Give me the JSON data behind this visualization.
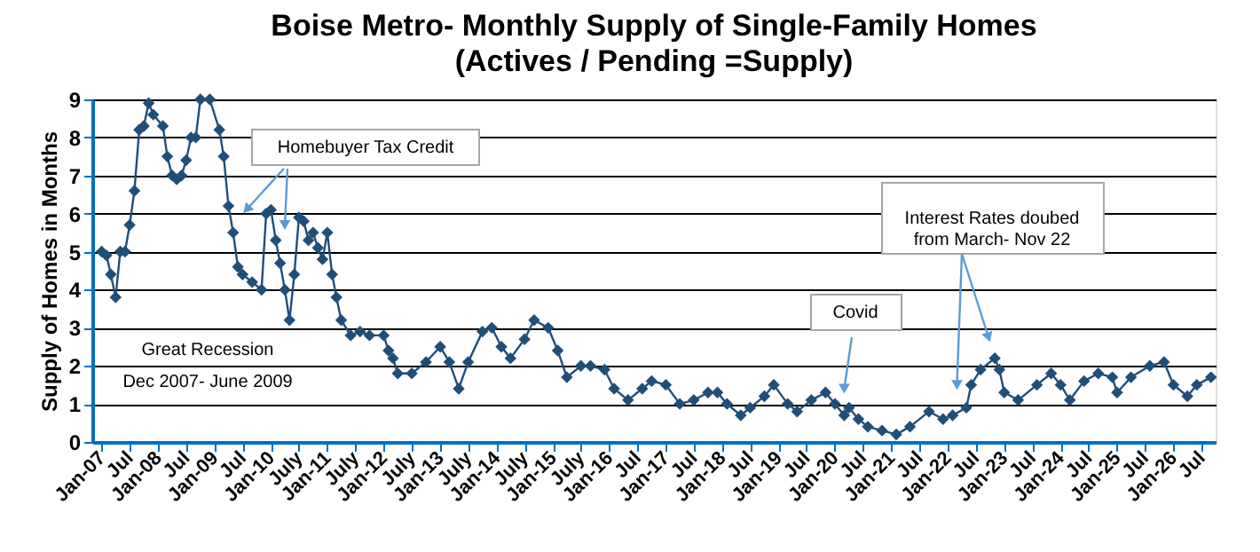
{
  "chart_data": {
    "type": "line",
    "title": "Boise Metro- Monthly Supply of Single-Family Homes\n(Actives / Pending =Supply)",
    "ylabel": "Supply of Homes in Months",
    "x": [
      "2007-01",
      "2007-02",
      "2007-03",
      "2007-04",
      "2007-05",
      "2007-06",
      "2007-07",
      "2007-08",
      "2007-09",
      "2007-10",
      "2007-11",
      "2007-12",
      "2008-02",
      "2008-03",
      "2008-04",
      "2008-05",
      "2008-06",
      "2008-07",
      "2008-08",
      "2008-09",
      "2008-10",
      "2008-12",
      "2009-02",
      "2009-03",
      "2009-04",
      "2009-05",
      "2009-06",
      "2009-07",
      "2009-09",
      "2009-11",
      "2009-12",
      "2010-01",
      "2010-02",
      "2010-03",
      "2010-04",
      "2010-05",
      "2010-06",
      "2010-07",
      "2010-08",
      "2010-09",
      "2010-10",
      "2010-11",
      "2010-12",
      "2011-01",
      "2011-02",
      "2011-03",
      "2011-04",
      "2011-06",
      "2011-08",
      "2011-10",
      "2012-01",
      "2012-02",
      "2012-03",
      "2012-04",
      "2012-07",
      "2012-10",
      "2013-01",
      "2013-03",
      "2013-05",
      "2013-07",
      "2013-10",
      "2013-12",
      "2014-02",
      "2014-04",
      "2014-07",
      "2014-09",
      "2014-12",
      "2015-02",
      "2015-04",
      "2015-07",
      "2015-09",
      "2015-12",
      "2016-02",
      "2016-05",
      "2016-08",
      "2016-10",
      "2017-01",
      "2017-04",
      "2017-07",
      "2017-10",
      "2017-12",
      "2018-02",
      "2018-05",
      "2018-07",
      "2018-10",
      "2018-12",
      "2019-03",
      "2019-05",
      "2019-08",
      "2019-11",
      "2020-01",
      "2020-03",
      "2020-04",
      "2020-06",
      "2020-08",
      "2020-11",
      "2021-02",
      "2021-05",
      "2021-09",
      "2021-12",
      "2022-02",
      "2022-05",
      "2022-06",
      "2022-08",
      "2022-11",
      "2022-12",
      "2023-01",
      "2023-04",
      "2023-08",
      "2023-11",
      "2024-01",
      "2024-03",
      "2024-06",
      "2024-09",
      "2024-12",
      "2025-01",
      "2025-04",
      "2025-08",
      "2025-11",
      "2026-01",
      "2026-04",
      "2026-06",
      "2026-09"
    ],
    "series": [
      {
        "color": "#1f4e79",
        "values": [
          5.0,
          4.9,
          4.4,
          3.8,
          5.0,
          5.0,
          5.7,
          6.6,
          8.2,
          8.3,
          8.9,
          8.6,
          8.3,
          7.5,
          7.0,
          6.9,
          7.0,
          7.4,
          8.0,
          8.0,
          9.0,
          9.0,
          8.2,
          7.5,
          6.2,
          5.5,
          4.6,
          4.4,
          4.2,
          4.0,
          6.0,
          6.1,
          5.3,
          4.7,
          4.0,
          3.2,
          4.4,
          5.9,
          5.8,
          5.3,
          5.5,
          5.1,
          4.8,
          5.5,
          4.4,
          3.8,
          3.2,
          2.8,
          2.9,
          2.8,
          2.8,
          2.4,
          2.2,
          1.8,
          1.8,
          2.1,
          2.5,
          2.1,
          1.4,
          2.1,
          2.9,
          3.0,
          2.5,
          2.2,
          2.7,
          3.2,
          3.0,
          2.4,
          1.7,
          2.0,
          2.0,
          1.9,
          1.4,
          1.1,
          1.4,
          1.6,
          1.5,
          1.0,
          1.1,
          1.3,
          1.3,
          1.0,
          0.7,
          0.9,
          1.2,
          1.5,
          1.0,
          0.8,
          1.1,
          1.3,
          1.0,
          0.7,
          0.9,
          0.6,
          0.4,
          0.3,
          0.2,
          0.4,
          0.8,
          0.6,
          0.7,
          0.9,
          1.5,
          1.9,
          2.2,
          1.9,
          1.3,
          1.1,
          1.5,
          1.8,
          1.5,
          1.1,
          1.6,
          1.8,
          1.7,
          1.3,
          1.7,
          2.0,
          2.1,
          1.5,
          1.2,
          1.5,
          1.7
        ]
      }
    ],
    "xlim": [
      "2006-11",
      "2026-10"
    ],
    "xticks": [
      {
        "value": "2007-01",
        "label": "Jan-07"
      },
      {
        "value": "2007-07",
        "label": "Jul"
      },
      {
        "value": "2008-01",
        "label": "Jan-08"
      },
      {
        "value": "2008-07",
        "label": "Jul"
      },
      {
        "value": "2009-01",
        "label": "Jan-09"
      },
      {
        "value": "2009-07",
        "label": "Jul"
      },
      {
        "value": "2010-01",
        "label": "Jan-10"
      },
      {
        "value": "2010-07",
        "label": "July"
      },
      {
        "value": "2011-01",
        "label": "Jan-11"
      },
      {
        "value": "2011-07",
        "label": "July"
      },
      {
        "value": "2012-01",
        "label": "Jan-12"
      },
      {
        "value": "2012-07",
        "label": "July"
      },
      {
        "value": "2013-01",
        "label": "Jan-13"
      },
      {
        "value": "2013-07",
        "label": "July"
      },
      {
        "value": "2014-01",
        "label": "Jan-14"
      },
      {
        "value": "2014-07",
        "label": "July"
      },
      {
        "value": "2015-01",
        "label": "Jan-15"
      },
      {
        "value": "2015-07",
        "label": "July"
      },
      {
        "value": "2016-01",
        "label": "Jan-16"
      },
      {
        "value": "2016-07",
        "label": "Jul"
      },
      {
        "value": "2017-01",
        "label": "Jan-17"
      },
      {
        "value": "2017-07",
        "label": "Jul"
      },
      {
        "value": "2018-01",
        "label": "Jan-18"
      },
      {
        "value": "2018-07",
        "label": "Jul"
      },
      {
        "value": "2019-01",
        "label": "Jan-19"
      },
      {
        "value": "2019-07",
        "label": "Jul"
      },
      {
        "value": "2020-01",
        "label": "Jan-20"
      },
      {
        "value": "2020-07",
        "label": "Jul"
      },
      {
        "value": "2021-01",
        "label": "Jan-21"
      },
      {
        "value": "2021-07",
        "label": "Jul"
      },
      {
        "value": "2022-01",
        "label": "Jan-22"
      },
      {
        "value": "2022-07",
        "label": "Jul"
      },
      {
        "value": "2023-01",
        "label": "Jan-23"
      },
      {
        "value": "2023-07",
        "label": "Jul"
      },
      {
        "value": "2024-01",
        "label": "Jan-24"
      },
      {
        "value": "2024-07",
        "label": "Jul"
      },
      {
        "value": "2025-01",
        "label": "Jan-25"
      },
      {
        "value": "2025-07",
        "label": "Jul"
      },
      {
        "value": "2026-01",
        "label": "Jan-26"
      },
      {
        "value": "2026-07",
        "label": "Jul"
      }
    ],
    "ylim": [
      0,
      9
    ],
    "yticks": [
      0,
      1,
      2,
      3,
      4,
      5,
      6,
      7,
      8,
      9
    ],
    "grid": "y",
    "marker": "diamond",
    "line_style": "solid",
    "annotations": [
      {
        "text": "Homebuyer Tax Credit",
        "x": "2010-04",
        "y": 5.7
      },
      "Great Recession\nDec 2007- June 2009",
      {
        "text": "Covid",
        "x": "2020-03",
        "y": 1.4
      },
      {
        "text": "Interest Rates doubed\nfrom March- Nov 22",
        "x": "2022-03",
        "y": 1.5
      }
    ]
  }
}
